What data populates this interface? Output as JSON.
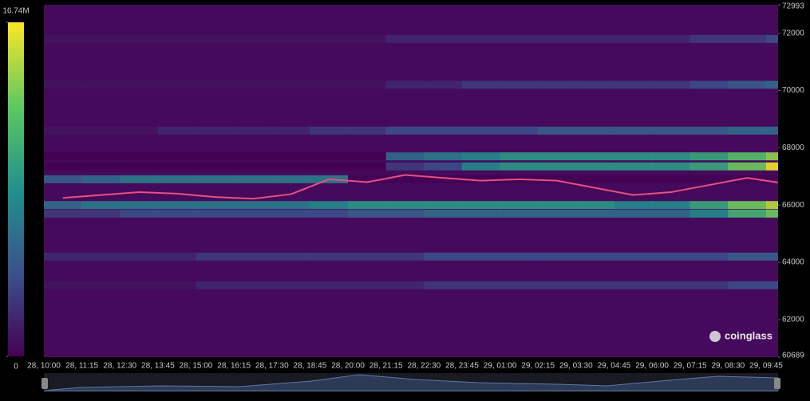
{
  "chart_data": {
    "type": "heatmap",
    "colorscale": "viridis",
    "categories": [
      "28, 10:00",
      "28, 11:15",
      "28, 12:30",
      "28, 13:45",
      "28, 15:00",
      "28, 16:15",
      "28, 17:30",
      "28, 18:45",
      "28, 20:00",
      "28, 21:15",
      "28, 22:30",
      "28, 23:45",
      "29, 01:00",
      "29, 02:15",
      "29, 03:30",
      "29, 04:45",
      "29, 06:00",
      "29, 07:15",
      "29, 08:30",
      "29, 09:45"
    ],
    "ylim": [
      60689,
      72993
    ],
    "yticks": [
      60689,
      62000,
      64000,
      66000,
      68000,
      70000,
      72000,
      72993
    ],
    "zlim": [
      0,
      16.74
    ],
    "colorbar_ticks": [
      {
        "value": 16.74,
        "label": "16.74M"
      },
      0
    ],
    "bands": [
      {
        "price": 71800,
        "values": [
          1,
          1,
          1,
          1,
          1,
          1,
          1,
          1,
          1,
          2,
          2,
          2,
          2,
          2,
          2,
          2,
          2,
          3,
          3,
          4
        ]
      },
      {
        "price": 70200,
        "values": [
          1,
          1,
          1,
          1,
          1,
          1,
          1,
          1,
          1,
          2,
          2,
          3,
          3,
          3,
          3,
          3,
          3,
          4,
          5,
          6
        ]
      },
      {
        "price": 68600,
        "values": [
          1,
          1,
          1,
          2,
          2,
          2,
          2,
          3,
          3,
          4,
          4,
          4,
          4,
          5,
          5,
          5,
          5,
          5,
          6,
          6
        ]
      },
      {
        "price": 67700,
        "values": [
          0,
          0,
          0,
          0,
          0,
          0,
          0,
          0,
          0,
          6,
          7,
          8,
          9,
          9,
          9,
          9,
          9,
          10,
          12,
          14
        ]
      },
      {
        "price": 67350,
        "values": [
          0,
          0,
          0,
          0,
          0,
          0,
          0,
          0,
          0,
          3,
          4,
          8,
          9,
          9,
          9,
          9,
          9,
          10,
          13,
          16.5
        ]
      },
      {
        "price": 66900,
        "values": [
          5,
          6,
          7,
          7,
          7,
          7,
          7,
          7,
          0,
          0,
          0,
          0,
          0,
          0,
          0,
          0,
          0,
          0,
          0,
          0
        ]
      },
      {
        "price": 66000,
        "values": [
          6,
          7,
          7,
          7,
          7,
          7,
          7,
          8,
          9,
          9,
          9,
          9,
          9,
          9,
          9,
          8,
          8,
          10,
          13,
          15
        ]
      },
      {
        "price": 65700,
        "values": [
          3,
          3,
          4,
          4,
          4,
          4,
          4,
          4,
          5,
          5,
          6,
          6,
          6,
          6,
          6,
          6,
          6,
          8,
          11,
          13
        ]
      },
      {
        "price": 64200,
        "values": [
          2,
          2,
          2,
          2,
          3,
          3,
          3,
          3,
          3,
          3,
          4,
          4,
          4,
          4,
          4,
          4,
          4,
          4,
          5,
          5
        ]
      },
      {
        "price": 63200,
        "values": [
          1,
          1,
          1,
          1,
          2,
          2,
          2,
          2,
          2,
          2,
          3,
          3,
          3,
          3,
          3,
          3,
          3,
          3,
          4,
          4
        ]
      }
    ],
    "price": {
      "color": "#e8507e",
      "values": [
        66250,
        66350,
        66450,
        66400,
        66280,
        66220,
        66380,
        66900,
        66800,
        67050,
        66950,
        66850,
        66900,
        66850,
        66600,
        66350,
        66450,
        66700,
        66950,
        66750
      ]
    },
    "watermark": "coinglass"
  }
}
